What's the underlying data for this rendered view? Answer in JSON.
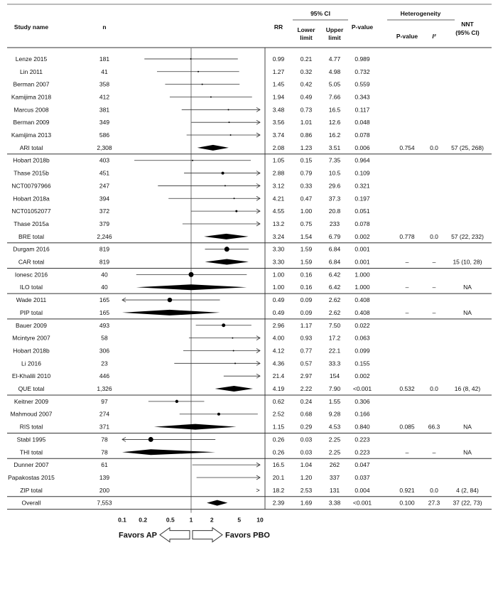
{
  "chart_data": {
    "type": "forest",
    "x_scale": "log",
    "xlim": [
      0.1,
      10
    ],
    "ticks": [
      {
        "value": 0.1,
        "label": "0.1"
      },
      {
        "value": 0.2,
        "label": "0.2"
      },
      {
        "value": 0.5,
        "label": "0.5"
      },
      {
        "value": 1,
        "label": "1"
      },
      {
        "value": 2,
        "label": "2"
      },
      {
        "value": 5,
        "label": "5"
      },
      {
        "value": 10,
        "label": "10"
      }
    ],
    "headers": {
      "study": "Study name",
      "n": "n",
      "rr": "RR",
      "ci": "95% CI",
      "lower": "Lower limit",
      "upper": "Upper limit",
      "pvalue": "P-value",
      "het": "Heterogeneity",
      "het_p": "P-value",
      "i2": "I²",
      "nnt": "NNT (95% CI)"
    },
    "favors": {
      "left": "Favors AP",
      "right": "Favors PBO"
    },
    "groups": [
      {
        "studies": [
          {
            "name": "Lenze 2015",
            "n": "181",
            "rr": "0.99",
            "lo": "0.21",
            "hi": "4.77",
            "p": "0.989",
            "size": 1
          },
          {
            "name": "Lin 2011",
            "n": "41",
            "rr": "1.27",
            "lo": "0.32",
            "hi": "4.98",
            "p": "0.732",
            "size": 1
          },
          {
            "name": "Berman 2007",
            "n": "358",
            "rr": "1.45",
            "lo": "0.42",
            "hi": "5.05",
            "p": "0.559",
            "size": 1
          },
          {
            "name": "Kamijima 2018",
            "n": "412",
            "rr": "1.94",
            "lo": "0.49",
            "hi": "7.66",
            "p": "0.343",
            "size": 1
          },
          {
            "name": "Marcus 2008",
            "n": "381",
            "rr": "3.48",
            "lo": "0.73",
            "hi": "16.5",
            "p": "0.117",
            "size": 1
          },
          {
            "name": "Berman 2009",
            "n": "349",
            "rr": "3.56",
            "lo": "1.01",
            "hi": "12.6",
            "p": "0.048",
            "size": 1
          },
          {
            "name": "Kamijima 2013",
            "n": "586",
            "rr": "3.74",
            "lo": "0.86",
            "hi": "16.2",
            "p": "0.078",
            "size": 1
          }
        ],
        "total": {
          "name": "ARI total",
          "n": "2,308",
          "rr": "2.08",
          "lo": "1.23",
          "hi": "3.51",
          "p": "0.006",
          "het_p": "0.754",
          "i2": "0.0",
          "nnt": "57 (25, 268)"
        }
      },
      {
        "studies": [
          {
            "name": "Hobart 2018b",
            "n": "403",
            "rr": "1.05",
            "lo": "0.15",
            "hi": "7.35",
            "p": "0.964",
            "size": 1
          },
          {
            "name": "Thase 2015b",
            "n": "451",
            "rr": "2.88",
            "lo": "0.79",
            "hi": "10.5",
            "p": "0.109",
            "size": 2
          },
          {
            "name": "NCT00797966",
            "n": "247",
            "rr": "3.12",
            "lo": "0.33",
            "hi": "29.6",
            "p": "0.321",
            "size": 1
          },
          {
            "name": "Hobart 2018a",
            "n": "394",
            "rr": "4.21",
            "lo": "0.47",
            "hi": "37.3",
            "p": "0.197",
            "size": 1
          },
          {
            "name": "NCT01052077",
            "n": "372",
            "rr": "4.55",
            "lo": "1.00",
            "hi": "20.8",
            "p": "0.051",
            "size": 1.5
          },
          {
            "name": "Thase 2015a",
            "n": "379",
            "rr": "13.2",
            "lo": "0.75",
            "hi": "233",
            "p": "0.078",
            "size": 1
          }
        ],
        "total": {
          "name": "BRE total",
          "n": "2,246",
          "rr": "3.24",
          "lo": "1.54",
          "hi": "6.79",
          "p": "0.002",
          "het_p": "0.778",
          "i2": "0.0",
          "nnt": "57 (22, 232)"
        }
      },
      {
        "studies": [
          {
            "name": "Durgam 2016",
            "n": "819",
            "rr": "3.30",
            "lo": "1.59",
            "hi": "6.84",
            "p": "0.001",
            "size": 3.5
          }
        ],
        "total": {
          "name": "CAR total",
          "n": "819",
          "rr": "3.30",
          "lo": "1.59",
          "hi": "6.84",
          "p": "0.001",
          "het_p": "–",
          "i2": "–",
          "nnt": "15 (10, 28)"
        }
      },
      {
        "studies": [
          {
            "name": "Ionesc 2016",
            "n": "40",
            "rr": "1.00",
            "lo": "0.16",
            "hi": "6.42",
            "p": "1.000",
            "size": 3.5
          }
        ],
        "total": {
          "name": "ILO total",
          "n": "40",
          "rr": "1.00",
          "lo": "0.16",
          "hi": "6.42",
          "p": "1.000",
          "het_p": "–",
          "i2": "–",
          "nnt": "NA"
        }
      },
      {
        "studies": [
          {
            "name": "Wade 2011",
            "n": "165",
            "rr": "0.49",
            "lo": "0.09",
            "hi": "2.62",
            "p": "0.408",
            "size": 3.2
          }
        ],
        "total": {
          "name": "PIP total",
          "n": "165",
          "rr": "0.49",
          "lo": "0.09",
          "hi": "2.62",
          "p": "0.408",
          "het_p": "–",
          "i2": "–",
          "nnt": "NA"
        }
      },
      {
        "studies": [
          {
            "name": "Bauer 2009",
            "n": "493",
            "rr": "2.96",
            "lo": "1.17",
            "hi": "7.50",
            "p": "0.022",
            "size": 2.5
          },
          {
            "name": "Mcintyre 2007",
            "n": "58",
            "rr": "4.00",
            "lo": "0.93",
            "hi": "17.2",
            "p": "0.063",
            "size": 1
          },
          {
            "name": "Hobart 2018b",
            "n": "306",
            "rr": "4.12",
            "lo": "0.77",
            "hi": "22.1",
            "p": "0.099",
            "size": 1
          },
          {
            "name": "Li 2016",
            "n": "23",
            "rr": "4.36",
            "lo": "0.57",
            "hi": "33.3",
            "p": "0.155",
            "size": 1
          },
          {
            "name": "El-Khalili 2010",
            "n": "446",
            "rr": "21.4",
            "lo": "2.97",
            "hi": "154",
            "p": "0.002",
            "size": 1
          }
        ],
        "total": {
          "name": "QUE total",
          "n": "1,326",
          "rr": "4.19",
          "lo": "2.22",
          "hi": "7.90",
          "p": "<0.001",
          "het_p": "0.532",
          "i2": "0.0",
          "nnt": "16 (8, 42)"
        }
      },
      {
        "studies": [
          {
            "name": "Keitner 2009",
            "n": "97",
            "rr": "0.62",
            "lo": "0.24",
            "hi": "1.55",
            "p": "0.306",
            "size": 2.2
          },
          {
            "name": "Mahmoud 2007",
            "n": "274",
            "rr": "2.52",
            "lo": "0.68",
            "hi": "9.28",
            "p": "0.166",
            "size": 2
          }
        ],
        "total": {
          "name": "RIS total",
          "n": "371",
          "rr": "1.15",
          "lo": "0.29",
          "hi": "4.53",
          "p": "0.840",
          "het_p": "0.085",
          "i2": "66.3",
          "nnt": "NA"
        }
      },
      {
        "studies": [
          {
            "name": "Stabl 1995",
            "n": "78",
            "rr": "0.26",
            "lo": "0.03",
            "hi": "2.25",
            "p": "0.223",
            "size": 3.5
          }
        ],
        "total": {
          "name": "THI total",
          "n": "78",
          "rr": "0.26",
          "lo": "0.03",
          "hi": "2.25",
          "p": "0.223",
          "het_p": "–",
          "i2": "–",
          "nnt": "NA"
        }
      },
      {
        "studies": [
          {
            "name": "Dunner 2007",
            "n": "61",
            "rr": "16.5",
            "lo": "1.04",
            "hi": "262",
            "p": "0.047",
            "size": 1
          },
          {
            "name": "Papakostas 2015",
            "n": "139",
            "rr": "20.1",
            "lo": "1.20",
            "hi": "337",
            "p": "0.037",
            "size": 1
          }
        ],
        "total": {
          "name": "ZIP total",
          "n": "200",
          "rr": "18.2",
          "lo": "2.53",
          "hi": "131",
          "p": "0.004",
          "het_p": "0.921",
          "i2": "0.0",
          "nnt": "4 (2, 84)"
        }
      }
    ],
    "overall": {
      "name": "Overall",
      "n": "7,553",
      "rr": "2.39",
      "lo": "1.69",
      "hi": "3.38",
      "p": "<0.001",
      "het_p": "0.100",
      "i2": "27.3",
      "nnt": "37 (22, 73)"
    }
  }
}
